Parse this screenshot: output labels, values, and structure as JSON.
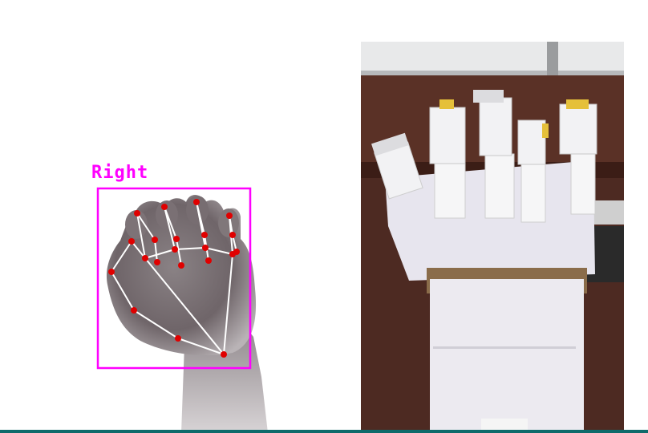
{
  "detection": {
    "label": "Right",
    "label_color": "#ff00ff",
    "box_color": "#ff00ff",
    "landmark_color": "#e00000",
    "connection_color": "#ffffff"
  },
  "right_photo": {
    "subject": "cardboard-robotic-hand"
  }
}
